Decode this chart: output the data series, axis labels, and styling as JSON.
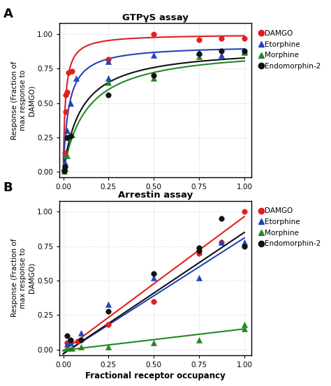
{
  "panel_A_title": "GTPγS assay",
  "panel_B_title": "Arrestin assay",
  "xlabel": "Fractional receptor occupancy",
  "ylabel": "Response (Fraction of\nmax response to\nDAMGO)",
  "colors": {
    "DAMGO": "#e02020",
    "Etorphine": "#2244bb",
    "Morphine": "#228822",
    "Endomorphin-2": "#111111"
  },
  "A_data_points": {
    "DAMGO": [
      [
        0.005,
        0.02
      ],
      [
        0.008,
        0.14
      ],
      [
        0.012,
        0.44
      ],
      [
        0.015,
        0.56
      ],
      [
        0.02,
        0.58
      ],
      [
        0.03,
        0.72
      ],
      [
        0.05,
        0.73
      ],
      [
        0.25,
        0.82
      ],
      [
        0.5,
        1.0
      ],
      [
        0.75,
        0.96
      ],
      [
        0.875,
        0.97
      ],
      [
        1.0,
        0.97
      ]
    ],
    "Etorphine": [
      [
        0.005,
        0.03
      ],
      [
        0.01,
        0.07
      ],
      [
        0.02,
        0.3
      ],
      [
        0.04,
        0.5
      ],
      [
        0.07,
        0.68
      ],
      [
        0.25,
        0.68
      ],
      [
        0.25,
        0.8
      ],
      [
        0.5,
        0.85
      ],
      [
        0.75,
        0.87
      ],
      [
        0.875,
        0.85
      ],
      [
        1.0,
        0.88
      ]
    ],
    "Morphine": [
      [
        0.005,
        0.01
      ],
      [
        0.01,
        0.03
      ],
      [
        0.02,
        0.12
      ],
      [
        0.03,
        0.25
      ],
      [
        0.05,
        0.27
      ],
      [
        0.25,
        0.65
      ],
      [
        0.5,
        0.68
      ],
      [
        0.75,
        0.84
      ],
      [
        1.0,
        0.87
      ]
    ],
    "Endomorphin-2": [
      [
        0.005,
        0.01
      ],
      [
        0.01,
        0.04
      ],
      [
        0.02,
        0.25
      ],
      [
        0.04,
        0.26
      ],
      [
        0.25,
        0.56
      ],
      [
        0.5,
        0.7
      ],
      [
        0.75,
        0.86
      ],
      [
        0.875,
        0.88
      ],
      [
        1.0,
        0.88
      ]
    ]
  },
  "A_curves": {
    "DAMGO": {
      "Emax": 1.0,
      "EC50": 0.012,
      "n": 1.0
    },
    "Etorphine": {
      "Emax": 0.92,
      "EC50": 0.03,
      "n": 1.0
    },
    "Morphine": {
      "Emax": 0.91,
      "EC50": 0.13,
      "n": 1.0
    },
    "Endomorphin-2": {
      "Emax": 0.91,
      "EC50": 0.1,
      "n": 1.0
    }
  },
  "B_data_points": {
    "DAMGO": [
      [
        0.02,
        0.05
      ],
      [
        0.04,
        0.06
      ],
      [
        0.08,
        0.06
      ],
      [
        0.25,
        0.18
      ],
      [
        0.5,
        0.35
      ],
      [
        0.75,
        0.7
      ],
      [
        0.875,
        0.78
      ],
      [
        1.0,
        1.0
      ]
    ],
    "Etorphine": [
      [
        0.02,
        0.04
      ],
      [
        0.04,
        0.05
      ],
      [
        0.1,
        0.12
      ],
      [
        0.25,
        0.33
      ],
      [
        0.5,
        0.52
      ],
      [
        0.75,
        0.52
      ],
      [
        0.875,
        0.78
      ],
      [
        1.0,
        0.78
      ]
    ],
    "Morphine": [
      [
        0.02,
        0.01
      ],
      [
        0.05,
        0.01
      ],
      [
        0.1,
        0.02
      ],
      [
        0.25,
        0.02
      ],
      [
        0.5,
        0.05
      ],
      [
        0.75,
        0.07
      ],
      [
        1.0,
        0.15
      ],
      [
        1.0,
        0.18
      ]
    ],
    "Endomorphin-2": [
      [
        0.02,
        0.1
      ],
      [
        0.04,
        0.07
      ],
      [
        0.1,
        0.07
      ],
      [
        0.25,
        0.28
      ],
      [
        0.5,
        0.55
      ],
      [
        0.75,
        0.72
      ],
      [
        0.75,
        0.74
      ],
      [
        0.875,
        0.95
      ],
      [
        1.0,
        0.75
      ]
    ]
  },
  "B_lines": {
    "DAMGO": {
      "slope": 0.975,
      "intercept": -0.01
    },
    "Etorphine": {
      "slope": 0.84,
      "intercept": -0.03
    },
    "Morphine": {
      "slope": 0.155,
      "intercept": -0.005
    },
    "Endomorphin-2": {
      "slope": 0.88,
      "intercept": -0.03
    }
  },
  "yticks": [
    0.0,
    0.25,
    0.5,
    0.75,
    1.0
  ],
  "xticks": [
    0.0,
    0.25,
    0.5,
    0.75,
    1.0
  ],
  "xlim": [
    -0.02,
    1.04
  ],
  "ylim": [
    -0.04,
    1.08
  ],
  "drug_order": [
    "DAMGO",
    "Etorphine",
    "Morphine",
    "Endomorphin-2"
  ]
}
